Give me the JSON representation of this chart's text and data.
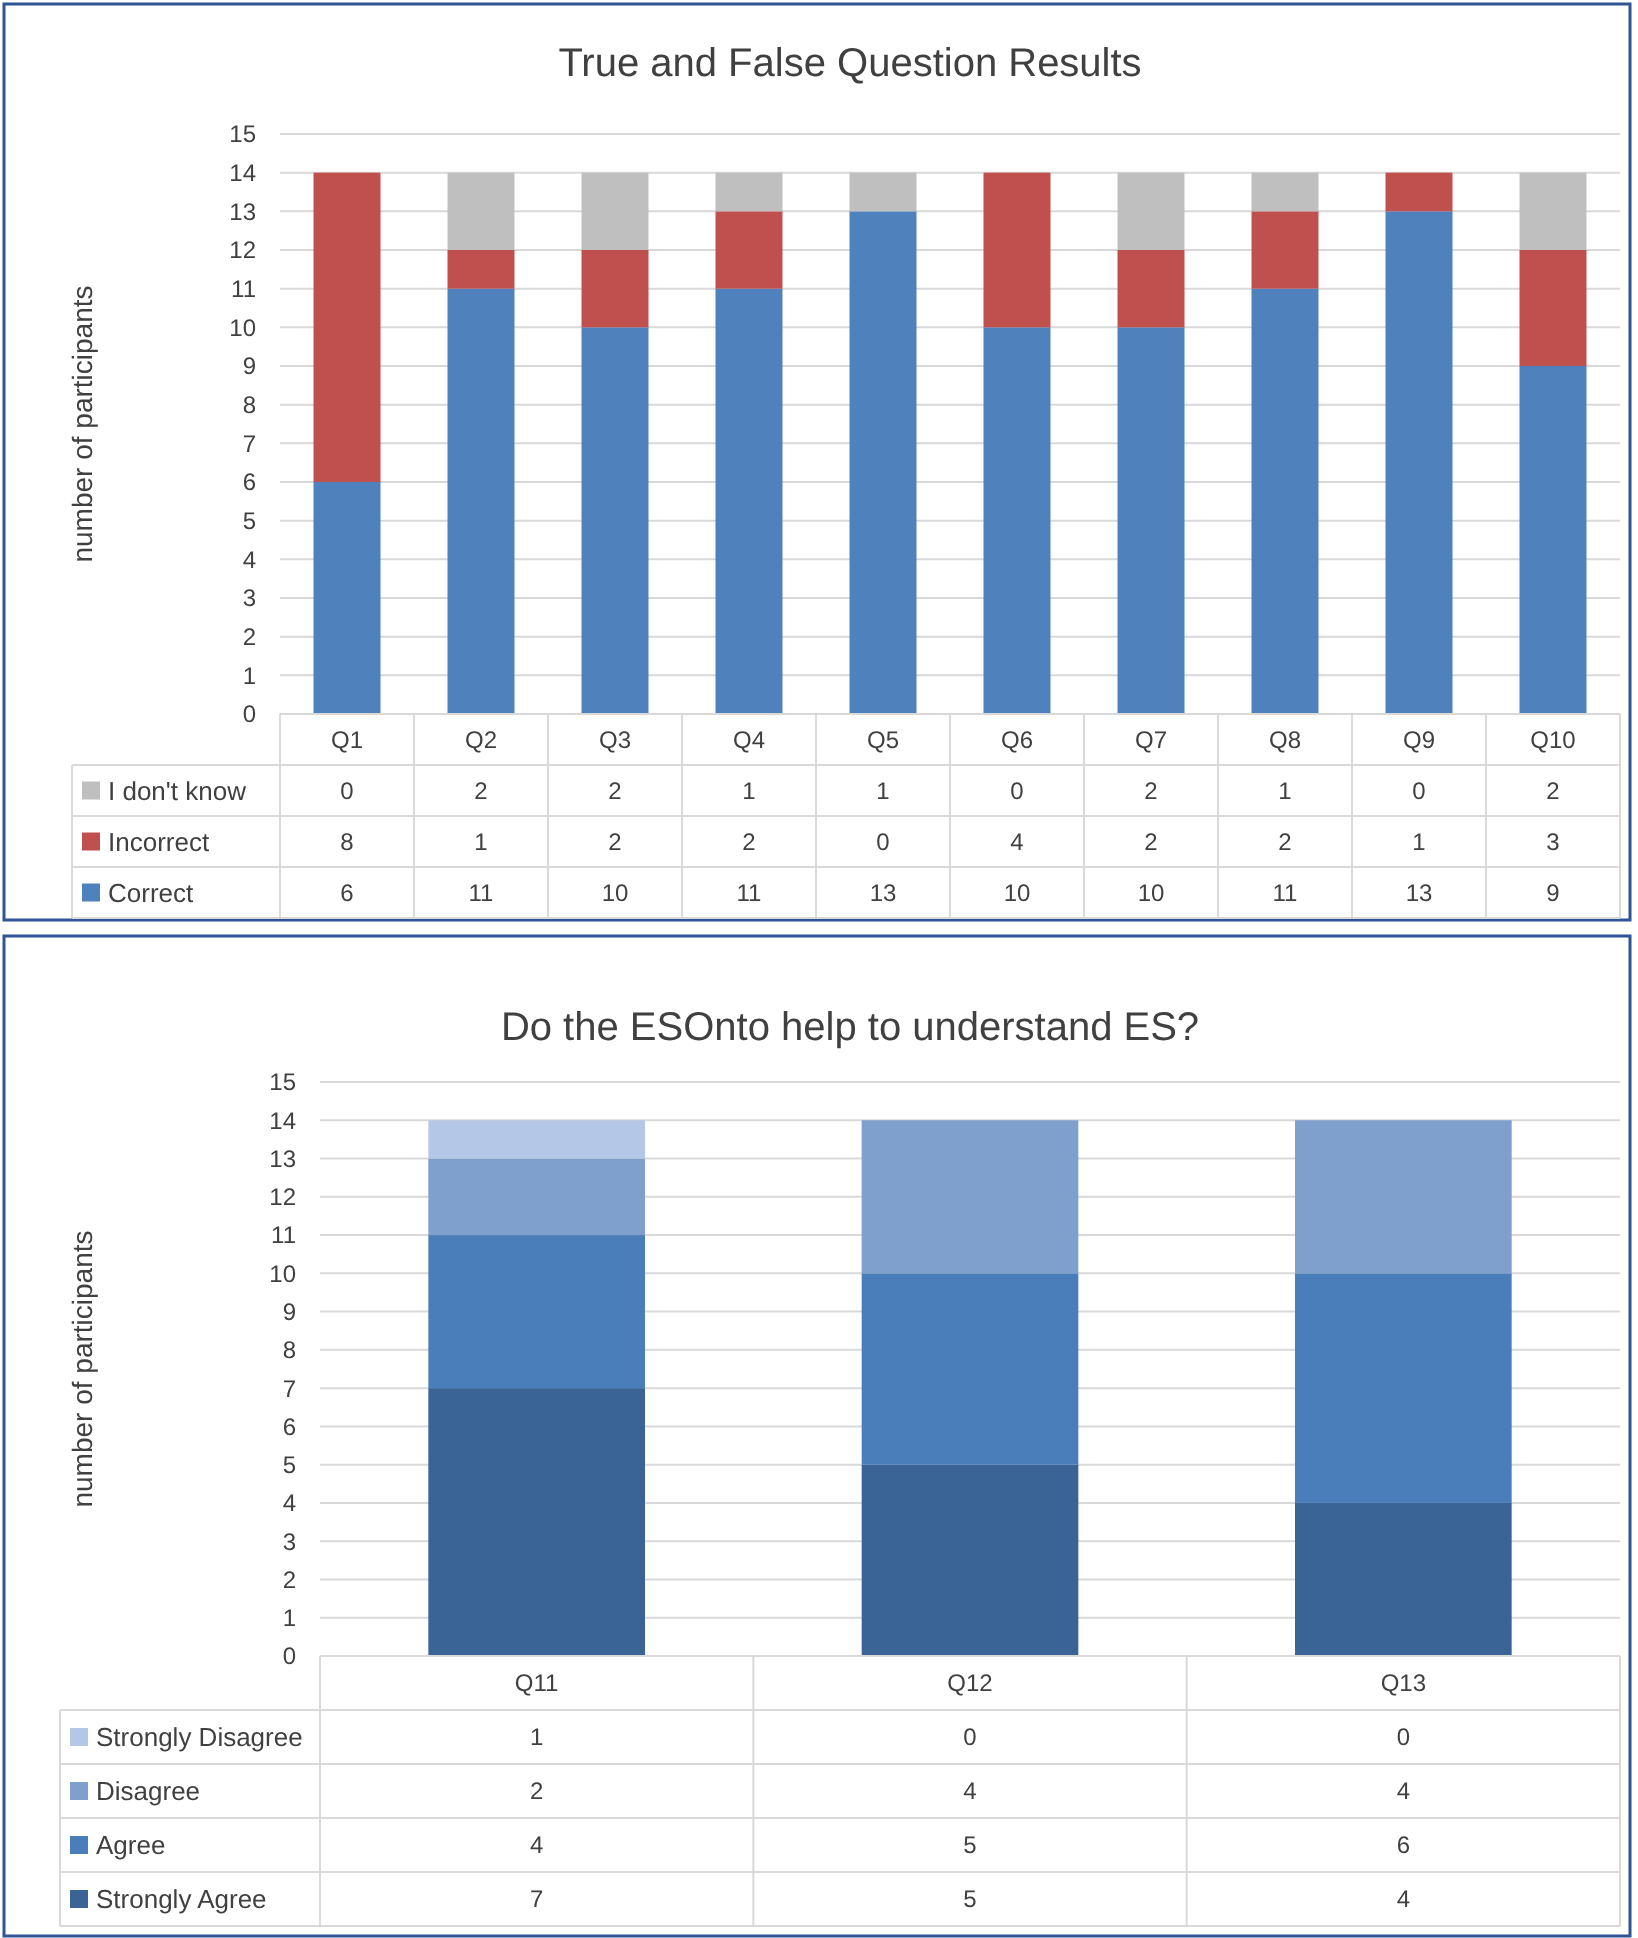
{
  "chart_data": [
    {
      "type": "bar",
      "stacked": true,
      "title": "True and False Question Results",
      "ylabel": "number of participants",
      "categories": [
        "Q1",
        "Q2",
        "Q3",
        "Q4",
        "Q5",
        "Q6",
        "Q7",
        "Q8",
        "Q9",
        "Q10"
      ],
      "series": [
        {
          "name": "Correct",
          "color": "#4f81bd",
          "values": [
            6,
            11,
            10,
            11,
            13,
            10,
            10,
            11,
            13,
            9
          ]
        },
        {
          "name": "Incorrect",
          "color": "#c0504d",
          "values": [
            8,
            1,
            2,
            2,
            0,
            4,
            2,
            2,
            1,
            3
          ]
        },
        {
          "name": "I don't know",
          "color": "#bfbfbf",
          "values": [
            0,
            2,
            2,
            1,
            1,
            0,
            2,
            1,
            0,
            2
          ]
        }
      ],
      "ylim": [
        0,
        15
      ],
      "yticks": [
        0,
        1,
        2,
        3,
        4,
        5,
        6,
        7,
        8,
        9,
        10,
        11,
        12,
        13,
        14,
        15
      ],
      "grid": "y",
      "data_labels": true,
      "legend": "bottom"
    },
    {
      "type": "bar",
      "stacked": true,
      "title": "Do the ESOnto help to understand ES?",
      "ylabel": "number of participants",
      "categories": [
        "Q11",
        "Q12",
        "Q13"
      ],
      "series": [
        {
          "name": "Strongly Agree",
          "color": "#3a6496",
          "values": [
            7,
            5,
            4
          ]
        },
        {
          "name": "Agree",
          "color": "#4a7ebb",
          "values": [
            4,
            5,
            6
          ]
        },
        {
          "name": "Disagree",
          "color": "#7f9fcc",
          "values": [
            2,
            4,
            4
          ]
        },
        {
          "name": "Strongly Disagree",
          "color": "#b4c7e7",
          "values": [
            1,
            0,
            0
          ]
        }
      ],
      "ylim": [
        0,
        15
      ],
      "yticks": [
        0,
        1,
        2,
        3,
        4,
        5,
        6,
        7,
        8,
        9,
        10,
        11,
        12,
        13,
        14,
        15
      ],
      "grid": "y",
      "data_labels": true,
      "legend": "bottom"
    }
  ]
}
